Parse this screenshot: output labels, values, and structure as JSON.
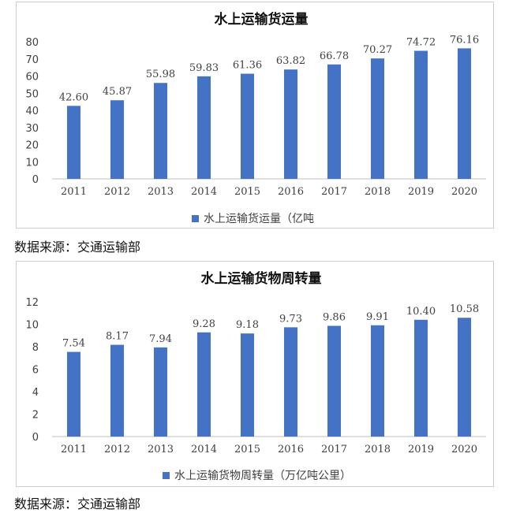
{
  "chart_data": [
    {
      "type": "bar",
      "title": "水上运输货运量",
      "categories": [
        "2011",
        "2012",
        "2013",
        "2014",
        "2015",
        "2016",
        "2017",
        "2018",
        "2019",
        "2020"
      ],
      "series": [
        {
          "name": "水上运输货运量（亿吨",
          "values": [
            42.6,
            45.87,
            55.98,
            59.83,
            61.36,
            63.82,
            66.78,
            70.27,
            74.72,
            76.16
          ]
        }
      ],
      "value_labels": [
        "42.60",
        "45.87",
        "55.98",
        "59.83",
        "61.36",
        "63.82",
        "66.78",
        "70.27",
        "74.72",
        "76.16"
      ],
      "ylim": [
        0,
        80
      ],
      "yticks": [
        "0",
        "10",
        "20",
        "30",
        "40",
        "50",
        "60",
        "70",
        "80"
      ],
      "xlabel": "",
      "ylabel": "",
      "grid": false,
      "legend": "bottom",
      "color": "#4472C4"
    },
    {
      "type": "bar",
      "title": "水上运输货物周转量",
      "categories": [
        "2011",
        "2012",
        "2013",
        "2014",
        "2015",
        "2016",
        "2017",
        "2018",
        "2019",
        "2020"
      ],
      "series": [
        {
          "name": "水上运输货物周转量（万亿吨公里）",
          "values": [
            7.54,
            8.17,
            7.94,
            9.28,
            9.18,
            9.73,
            9.86,
            9.91,
            10.4,
            10.58
          ]
        }
      ],
      "value_labels": [
        "7.54",
        "8.17",
        "7.94",
        "9.28",
        "9.18",
        "9.73",
        "9.86",
        "9.91",
        "10.40",
        "10.58"
      ],
      "ylim": [
        0,
        12
      ],
      "yticks": [
        "0",
        "2",
        "4",
        "6",
        "8",
        "10",
        "12"
      ],
      "xlabel": "",
      "ylabel": "",
      "grid": false,
      "legend": "bottom",
      "color": "#4472C4"
    }
  ],
  "sources": [
    "数据来源：交通运输部",
    "数据来源：交通运输部"
  ]
}
